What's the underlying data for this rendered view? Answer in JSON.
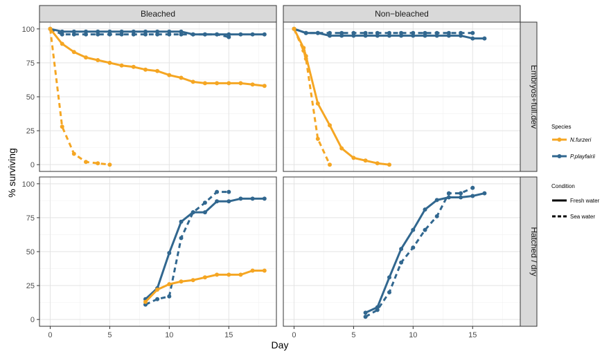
{
  "chart_data": {
    "type": "line",
    "xlabel": "Day",
    "ylabel": "% surviving",
    "xlim": [
      -0.9,
      19
    ],
    "ylim": [
      -5,
      105
    ],
    "x_ticks": [
      0,
      5,
      10,
      15
    ],
    "y_ticks": [
      0,
      25,
      50,
      75,
      100
    ],
    "column_facets": [
      "Bleached",
      "Non−bleached"
    ],
    "row_facets": [
      "Embryos+full.dev",
      "Hatched / dry"
    ],
    "legend": {
      "species_title": "Species",
      "species": [
        {
          "name": "N.furzeri",
          "color": "#F5A623"
        },
        {
          "name": "P.playfairii",
          "color": "#31678F"
        }
      ],
      "condition_title": "Condition",
      "conditions": [
        {
          "name": "Fresh water",
          "linetype": "solid"
        },
        {
          "name": "Sea water",
          "linetype": "dashed"
        }
      ]
    },
    "series": [
      {
        "facet_col": 0,
        "facet_row": 0,
        "species": "P.playfairii",
        "condition": "Fresh water",
        "x": [
          0,
          1,
          2,
          3,
          4,
          5,
          6,
          7,
          8,
          9,
          10,
          11,
          12,
          13,
          14,
          15,
          16,
          17,
          18
        ],
        "y": [
          100,
          98,
          98,
          98,
          98,
          98,
          98,
          98,
          98,
          98,
          98,
          98,
          96,
          96,
          96,
          96,
          96,
          96,
          96
        ]
      },
      {
        "facet_col": 0,
        "facet_row": 0,
        "species": "P.playfairii",
        "condition": "Sea water",
        "x": [
          0,
          1,
          2,
          3,
          4,
          5,
          6,
          7,
          8,
          9,
          10,
          11,
          12,
          13,
          14,
          15
        ],
        "y": [
          100,
          96,
          96,
          96,
          96,
          96,
          96,
          96,
          96,
          96,
          96,
          96,
          96,
          96,
          96,
          94
        ]
      },
      {
        "facet_col": 0,
        "facet_row": 0,
        "species": "N.furzeri",
        "condition": "Fresh water",
        "x": [
          0,
          1,
          2,
          3,
          4,
          5,
          6,
          7,
          8,
          9,
          10,
          11,
          12,
          13,
          14,
          15,
          16,
          17,
          18
        ],
        "y": [
          100,
          89,
          83,
          79,
          77,
          75,
          73,
          72,
          70,
          69,
          66,
          64,
          61,
          60,
          60,
          60,
          60,
          59,
          58
        ]
      },
      {
        "facet_col": 0,
        "facet_row": 0,
        "species": "N.furzeri",
        "condition": "Sea water",
        "x": [
          0,
          1,
          2,
          3,
          4,
          5
        ],
        "y": [
          100,
          28,
          8,
          2,
          1,
          0
        ]
      },
      {
        "facet_col": 1,
        "facet_row": 0,
        "species": "P.playfairii",
        "condition": "Fresh water",
        "x": [
          0,
          1,
          2,
          3,
          4,
          5,
          6,
          7,
          8,
          9,
          10,
          11,
          12,
          13,
          14,
          15,
          16
        ],
        "y": [
          100,
          97,
          97,
          95,
          95,
          95,
          95,
          95,
          95,
          95,
          95,
          95,
          95,
          95,
          95,
          93,
          93
        ]
      },
      {
        "facet_col": 1,
        "facet_row": 0,
        "species": "P.playfairii",
        "condition": "Sea water",
        "x": [
          0,
          1,
          2,
          3,
          4,
          5,
          6,
          7,
          8,
          9,
          10,
          11,
          12,
          13,
          14,
          15
        ],
        "y": [
          100,
          97,
          97,
          97,
          97,
          97,
          97,
          97,
          97,
          97,
          97,
          97,
          97,
          97,
          97,
          97
        ]
      },
      {
        "facet_col": 1,
        "facet_row": 0,
        "species": "N.furzeri",
        "condition": "Fresh water",
        "x": [
          0,
          0.8,
          1,
          2,
          3,
          4,
          5,
          6,
          7,
          8
        ],
        "y": [
          100,
          86,
          80,
          45,
          29,
          12,
          5,
          3,
          1,
          0
        ]
      },
      {
        "facet_col": 1,
        "facet_row": 0,
        "species": "N.furzeri",
        "condition": "Sea water",
        "x": [
          0,
          0.8,
          1,
          2,
          3
        ],
        "y": [
          100,
          84,
          78,
          19,
          0
        ]
      },
      {
        "facet_col": 0,
        "facet_row": 1,
        "species": "P.playfairii",
        "condition": "Fresh water",
        "x": [
          8,
          9,
          10,
          11,
          12,
          13,
          14,
          15,
          16,
          17,
          18
        ],
        "y": [
          15,
          23,
          49,
          72,
          79,
          79,
          87,
          87,
          89,
          89,
          89
        ]
      },
      {
        "facet_col": 0,
        "facet_row": 1,
        "species": "P.playfairii",
        "condition": "Sea water",
        "x": [
          8,
          9,
          10,
          11,
          12,
          13,
          14,
          15
        ],
        "y": [
          11,
          15,
          17,
          60,
          79,
          86,
          94,
          94
        ]
      },
      {
        "facet_col": 0,
        "facet_row": 1,
        "species": "N.furzeri",
        "condition": "Fresh water",
        "x": [
          8,
          9,
          10,
          11,
          12,
          13,
          14,
          15,
          16,
          17,
          18
        ],
        "y": [
          13,
          22,
          26,
          28,
          29,
          31,
          33,
          33,
          33,
          36,
          36
        ]
      },
      {
        "facet_col": 1,
        "facet_row": 1,
        "species": "P.playfairii",
        "condition": "Fresh water",
        "x": [
          6,
          7,
          8,
          9,
          10,
          11,
          12,
          13,
          14,
          15,
          16
        ],
        "y": [
          5,
          9,
          31,
          52,
          66,
          81,
          88,
          90,
          90,
          91,
          93
        ]
      },
      {
        "facet_col": 1,
        "facet_row": 1,
        "species": "P.playfairii",
        "condition": "Sea water",
        "x": [
          6,
          7,
          8,
          9,
          10,
          11,
          12,
          13,
          14,
          15
        ],
        "y": [
          2,
          7,
          20,
          42,
          53,
          66,
          76,
          93,
          93,
          97
        ]
      }
    ]
  }
}
